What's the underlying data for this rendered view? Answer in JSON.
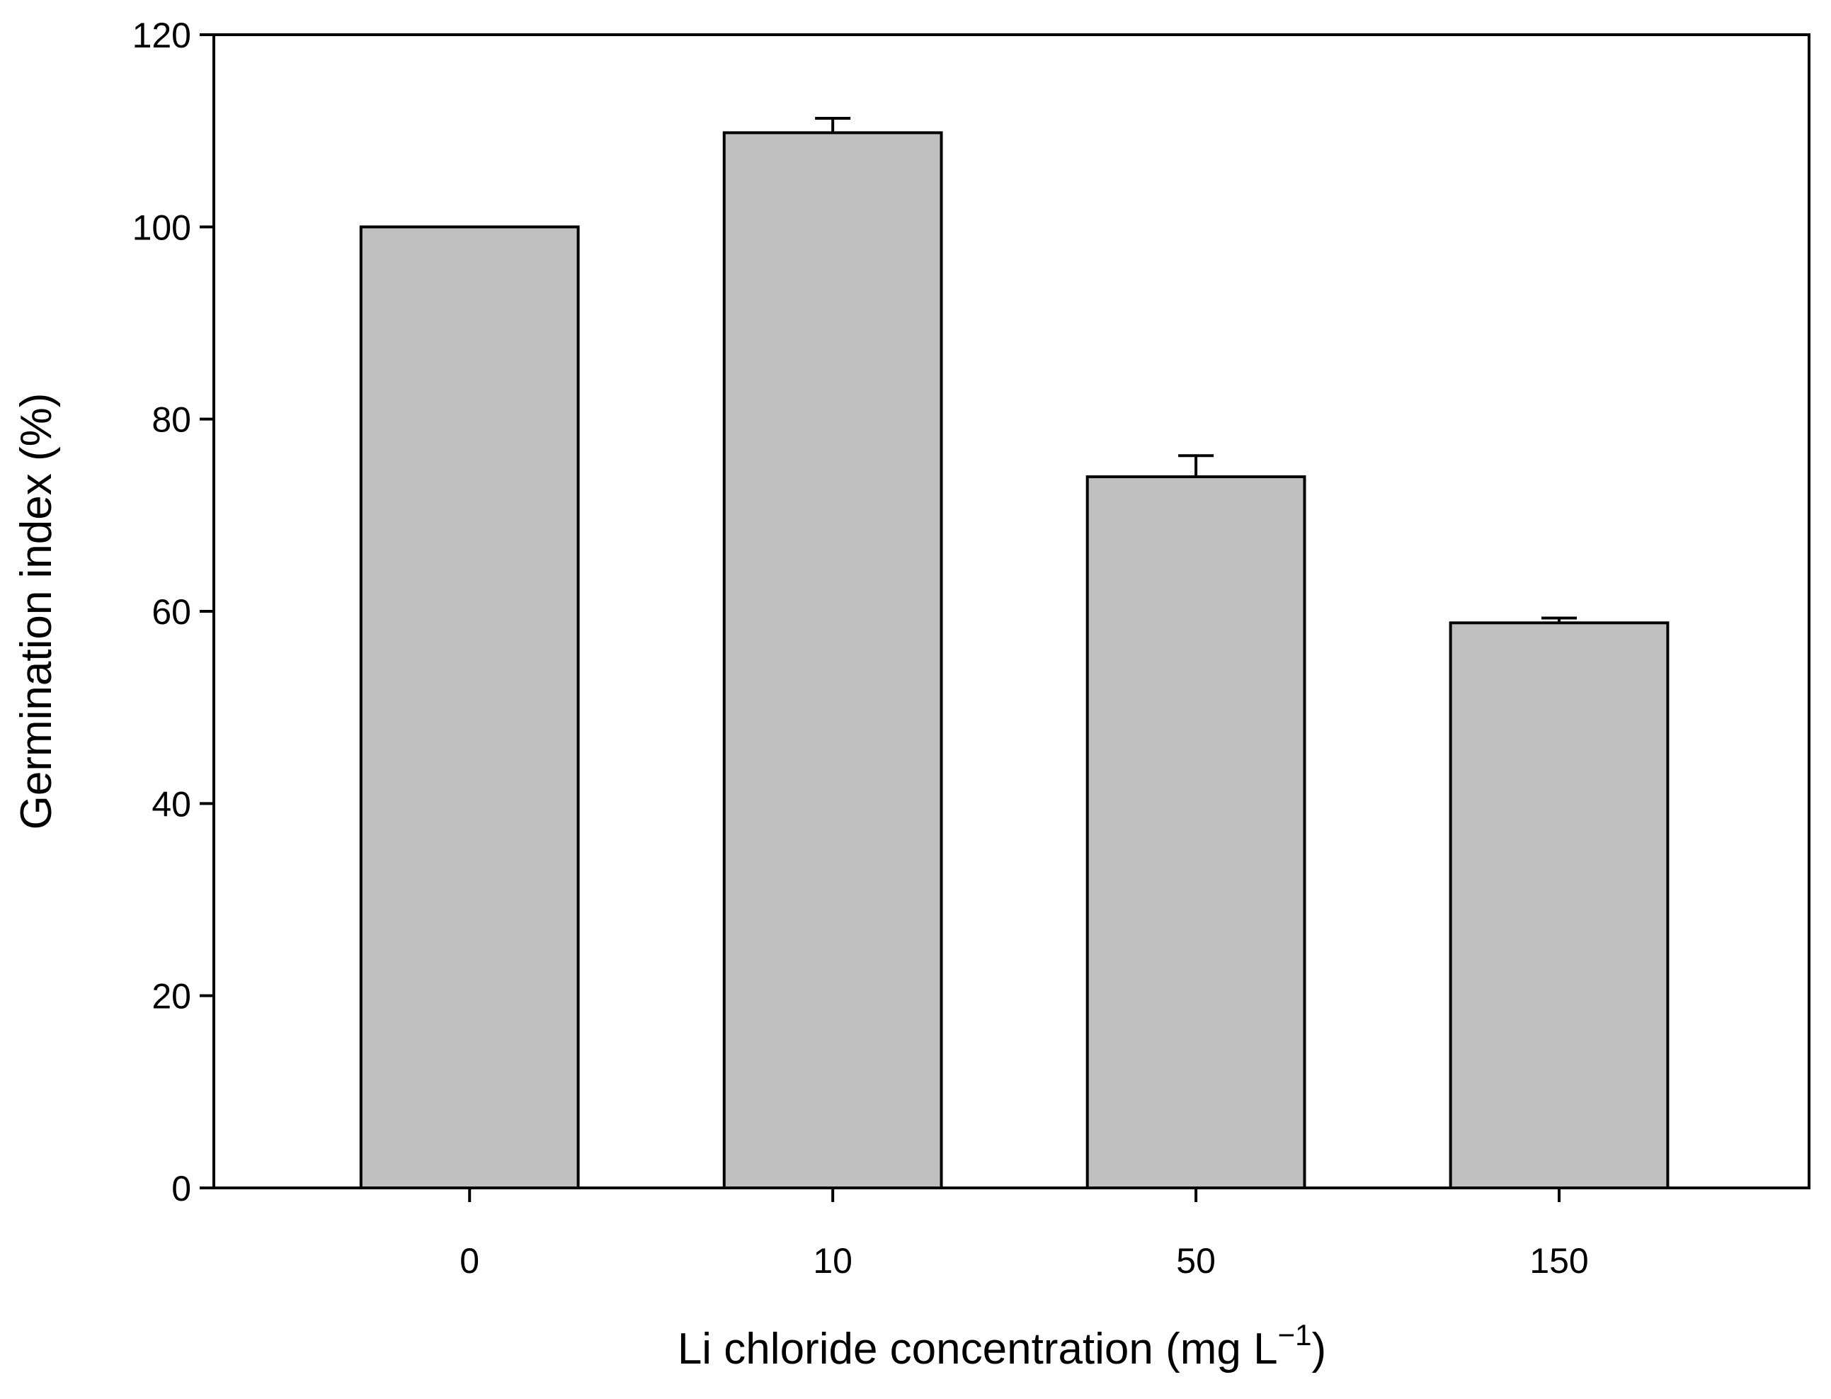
{
  "chart_data": {
    "type": "bar",
    "xlabel": {
      "main": "Li chloride concentration (mg L",
      "sup": "−1",
      "end": ")"
    },
    "ylabel": "Germination index (%)",
    "categories": [
      "0",
      "10",
      "50",
      "150"
    ],
    "values": [
      100,
      109.8,
      74,
      58.8
    ],
    "errors": [
      null,
      1.5,
      2.2,
      0.5
    ],
    "color": "#c0c0c0",
    "ylim": [
      0,
      120
    ],
    "yticks": [
      0,
      20,
      40,
      60,
      80,
      100,
      120
    ]
  }
}
